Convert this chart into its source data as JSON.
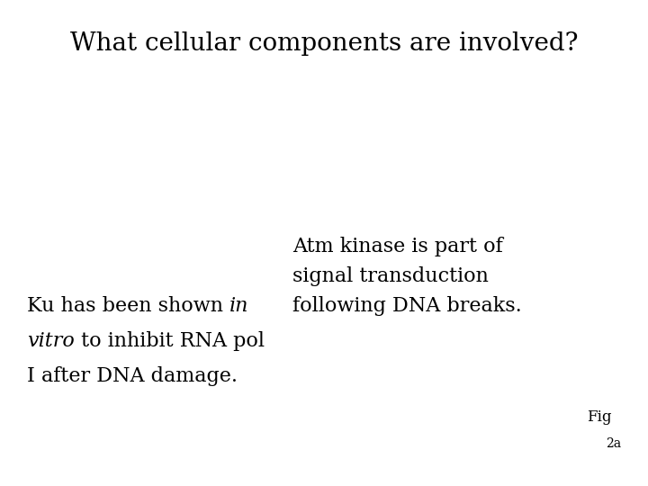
{
  "background_color": "#ffffff",
  "title": "What cellular components are involved?",
  "title_fontsize": 20,
  "title_color": "#000000",
  "body_fontsize": 16,
  "body_color": "#000000",
  "left_line1_normal": "Ku has been shown ",
  "left_line1_italic": "in",
  "left_line2_italic": "vitro",
  "left_line2_normal": " to inhibit RNA pol",
  "left_line3": "I after DNA damage.",
  "right_text": "Atm kinase is part of\nsignal transduction\nfollowing DNA breaks.",
  "fig_text": "Fig",
  "fig_sub": "2a",
  "fig_fontsize": 12,
  "fig_sub_fontsize": 10
}
